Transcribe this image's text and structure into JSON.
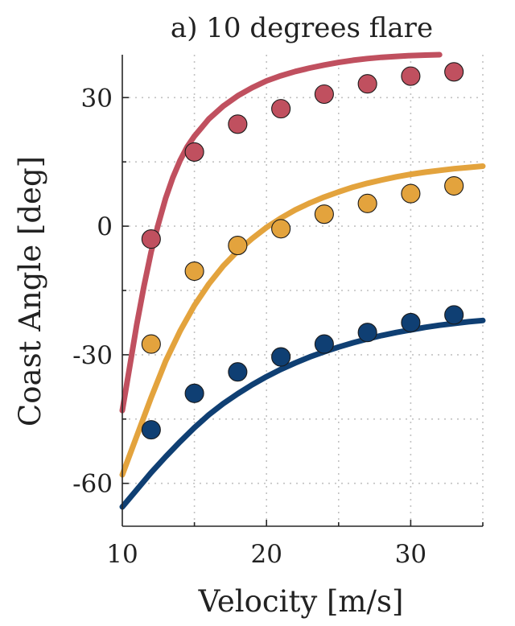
{
  "chart_data": {
    "type": "scatter",
    "title": "a) 10 degrees flare",
    "xlabel": "Velocity [m/s]",
    "ylabel": "Coast Angle [deg]",
    "xlim": [
      10,
      35
    ],
    "ylim": [
      -70,
      40
    ],
    "xticks": [
      10,
      20,
      30
    ],
    "xtick_labels": [
      "10",
      "20",
      "30"
    ],
    "yticks": [
      -60,
      -30,
      0,
      30
    ],
    "ytick_labels": [
      "-60",
      "-30",
      "0",
      "30"
    ],
    "grid": true,
    "legend": "none",
    "series": [
      {
        "color": "#c0505f",
        "line": {
          "x": [
            10,
            10.5,
            11,
            11.5,
            12,
            12.5,
            13,
            13.5,
            14,
            14.5,
            15,
            16,
            17,
            18,
            19,
            20,
            21,
            22,
            23,
            24,
            25,
            26,
            27,
            28,
            29,
            30,
            31,
            32
          ],
          "y": [
            -43,
            -33,
            -23,
            -14,
            -6,
            0.5,
            6.5,
            11.3,
            15.3,
            18.5,
            21,
            25,
            28,
            30.4,
            32.3,
            33.9,
            35.1,
            36.1,
            36.9,
            37.6,
            38.2,
            38.7,
            39.1,
            39.4,
            39.6,
            39.8,
            39.9,
            40
          ]
        },
        "points": {
          "x": [
            12,
            15,
            18,
            21,
            24,
            27,
            30,
            33
          ],
          "y": [
            -3,
            17.3,
            23.8,
            27.4,
            30.8,
            33.2,
            35,
            36
          ]
        }
      },
      {
        "color": "#e3a33d",
        "line": {
          "x": [
            10,
            11,
            12,
            13,
            14,
            15,
            16,
            17,
            18,
            19,
            20,
            21,
            22,
            23,
            24,
            25,
            26,
            27,
            28,
            29,
            30,
            31,
            32,
            33,
            34,
            35
          ],
          "y": [
            -58,
            -49,
            -40,
            -31.5,
            -24.5,
            -18.5,
            -13.5,
            -9.3,
            -5.8,
            -2.9,
            -0.3,
            1.9,
            3.8,
            5.4,
            6.8,
            8,
            9.1,
            10,
            10.8,
            11.5,
            12.1,
            12.6,
            13,
            13.4,
            13.7,
            14
          ]
        },
        "points": {
          "x": [
            12,
            15,
            18,
            21,
            24,
            27,
            30,
            33
          ],
          "y": [
            -27.5,
            -10.5,
            -4.5,
            -0.6,
            2.8,
            5.3,
            7.6,
            9.4
          ]
        }
      },
      {
        "color": "#0f3f73",
        "line": {
          "x": [
            10,
            11,
            12,
            13,
            14,
            15,
            16,
            17,
            18,
            19,
            20,
            21,
            22,
            23,
            24,
            25,
            26,
            27,
            28,
            29,
            30,
            31,
            32,
            33,
            34,
            35
          ],
          "y": [
            -65.5,
            -61.5,
            -57.5,
            -53.8,
            -50.3,
            -47,
            -44,
            -41.4,
            -39.1,
            -37,
            -35.1,
            -33.4,
            -31.9,
            -30.5,
            -29.3,
            -28.2,
            -27.2,
            -26.3,
            -25.5,
            -24.8,
            -24.2,
            -23.6,
            -23.1,
            -22.7,
            -22.3,
            -22
          ]
        },
        "points": {
          "x": [
            12,
            15,
            18,
            21,
            24,
            27,
            30,
            33
          ],
          "y": [
            -47.5,
            -39,
            -34,
            -30.5,
            -27.5,
            -24.8,
            -22.5,
            -20.7
          ]
        }
      }
    ]
  }
}
